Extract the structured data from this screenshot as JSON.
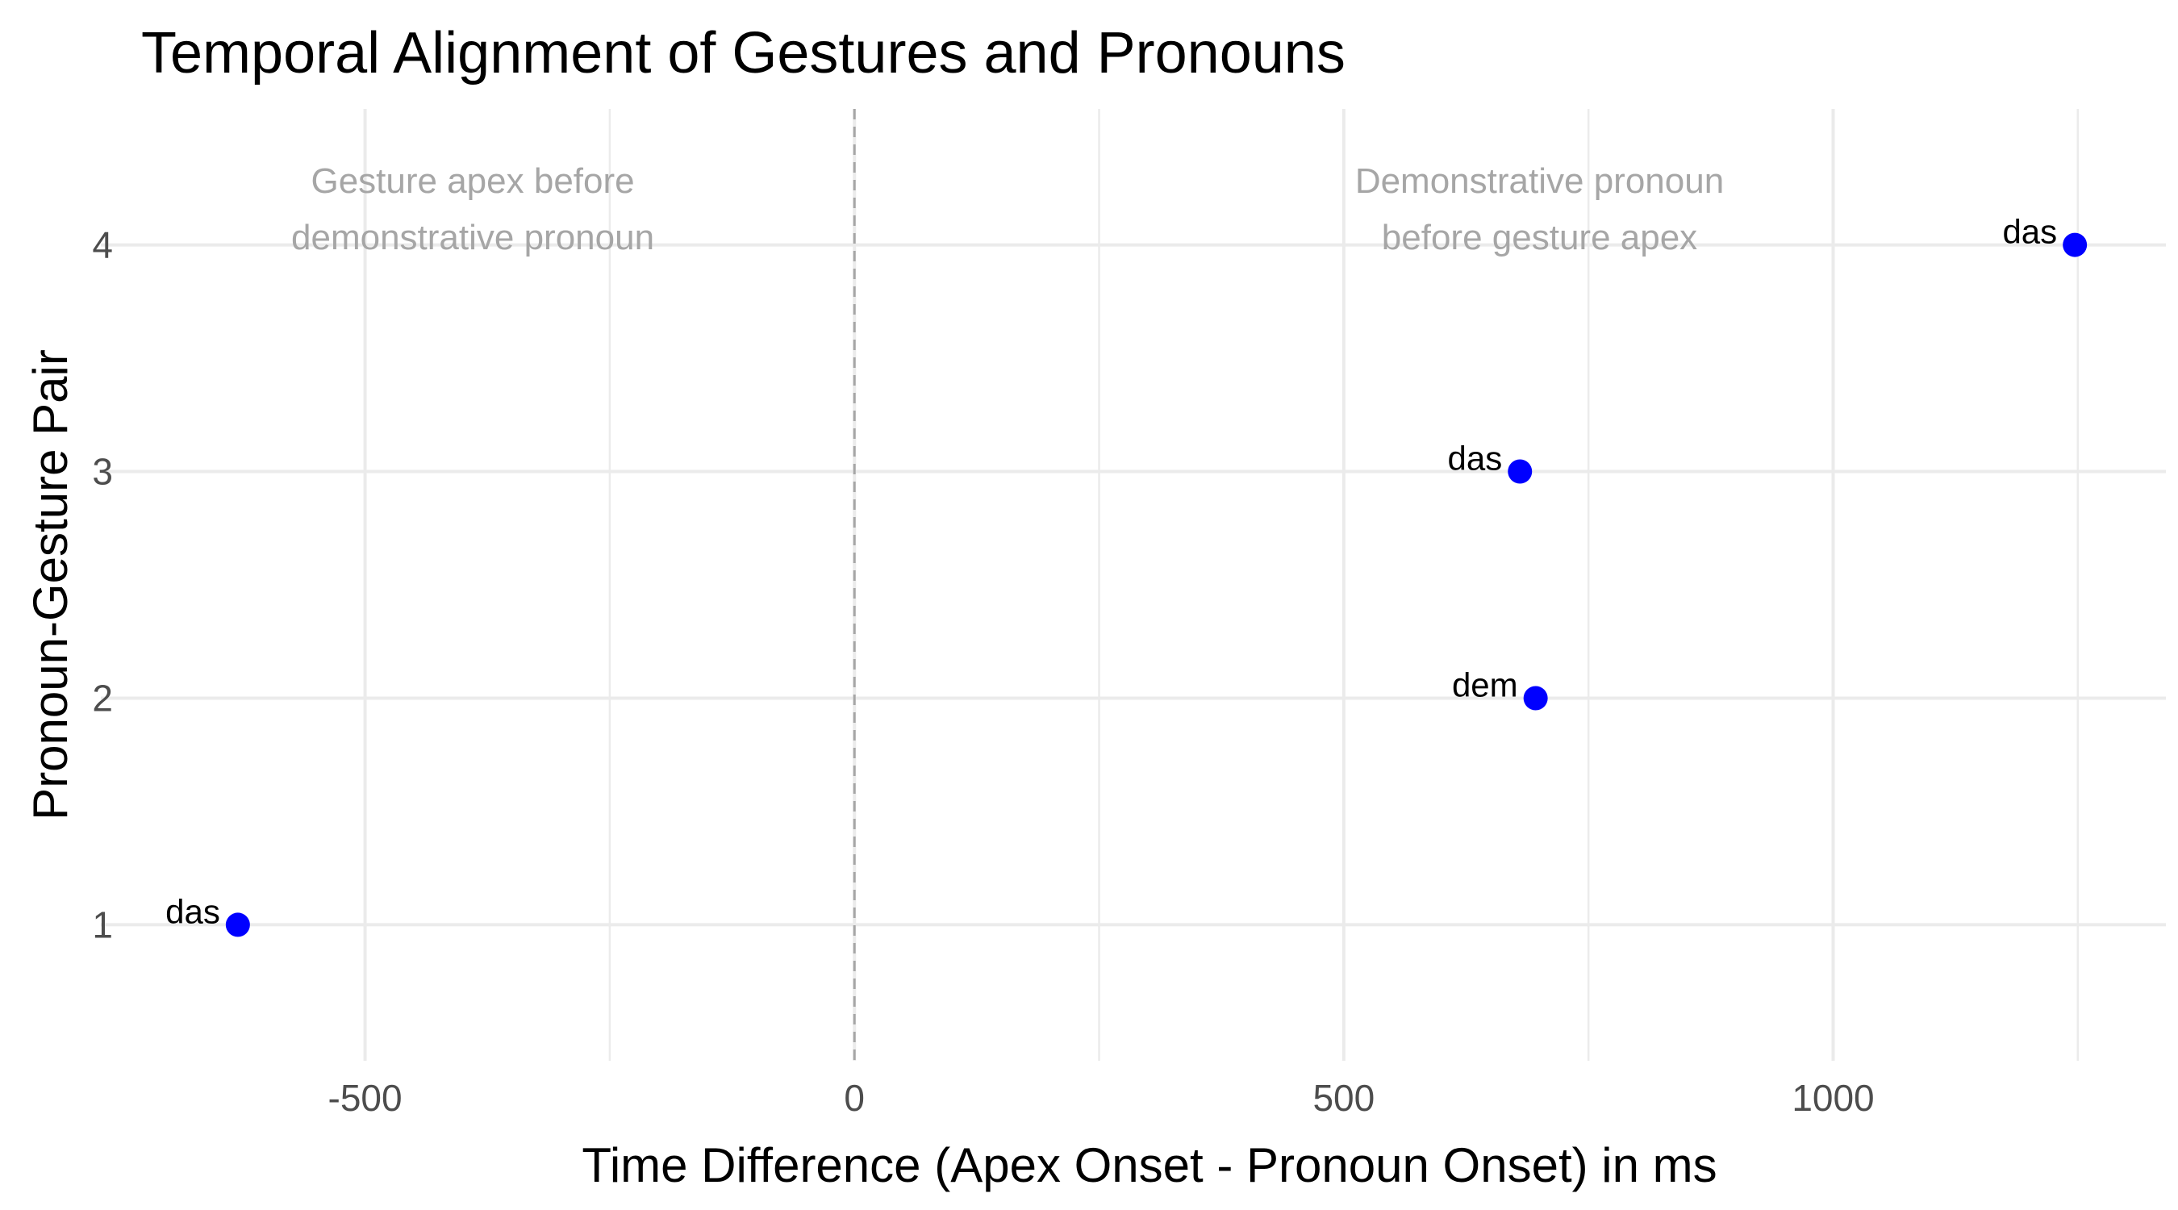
{
  "chart_data": {
    "type": "scatter",
    "title": "Temporal Alignment of Gestures and Pronouns",
    "xlabel": "Time Difference (Apex Onset - Pronoun Onset) in ms",
    "ylabel": "Pronoun-Gesture Pair",
    "xlim": [
      -770,
      1340
    ],
    "ylim": [
      0.4,
      4.6
    ],
    "x_ticks": [
      -500,
      0,
      500,
      1000
    ],
    "x_tick_labels": [
      "-500",
      "0",
      "500",
      "1000"
    ],
    "x_minor_ticks": [
      -250,
      250,
      750,
      1250
    ],
    "y_ticks": [
      1,
      2,
      3,
      4
    ],
    "y_tick_labels": [
      "1",
      "2",
      "3",
      "4"
    ],
    "grid": true,
    "reference_line": {
      "x": 0,
      "style": "dashed",
      "color": "#a6a6a6"
    },
    "point_color": "#0000ff",
    "series": [
      {
        "name": "pairs",
        "points": [
          {
            "x": -630,
            "y": 1,
            "label": "das"
          },
          {
            "x": 696,
            "y": 2,
            "label": "dem"
          },
          {
            "x": 680,
            "y": 3,
            "label": "das"
          },
          {
            "x": 1247,
            "y": 4,
            "label": "das"
          }
        ]
      }
    ],
    "annotations": [
      {
        "lines": [
          "Gesture apex before",
          "demonstrative pronoun"
        ],
        "x": -390,
        "y": 4.23
      },
      {
        "lines": [
          "Demonstrative pronoun",
          "before gesture apex"
        ],
        "x": 700,
        "y": 4.23
      }
    ]
  }
}
